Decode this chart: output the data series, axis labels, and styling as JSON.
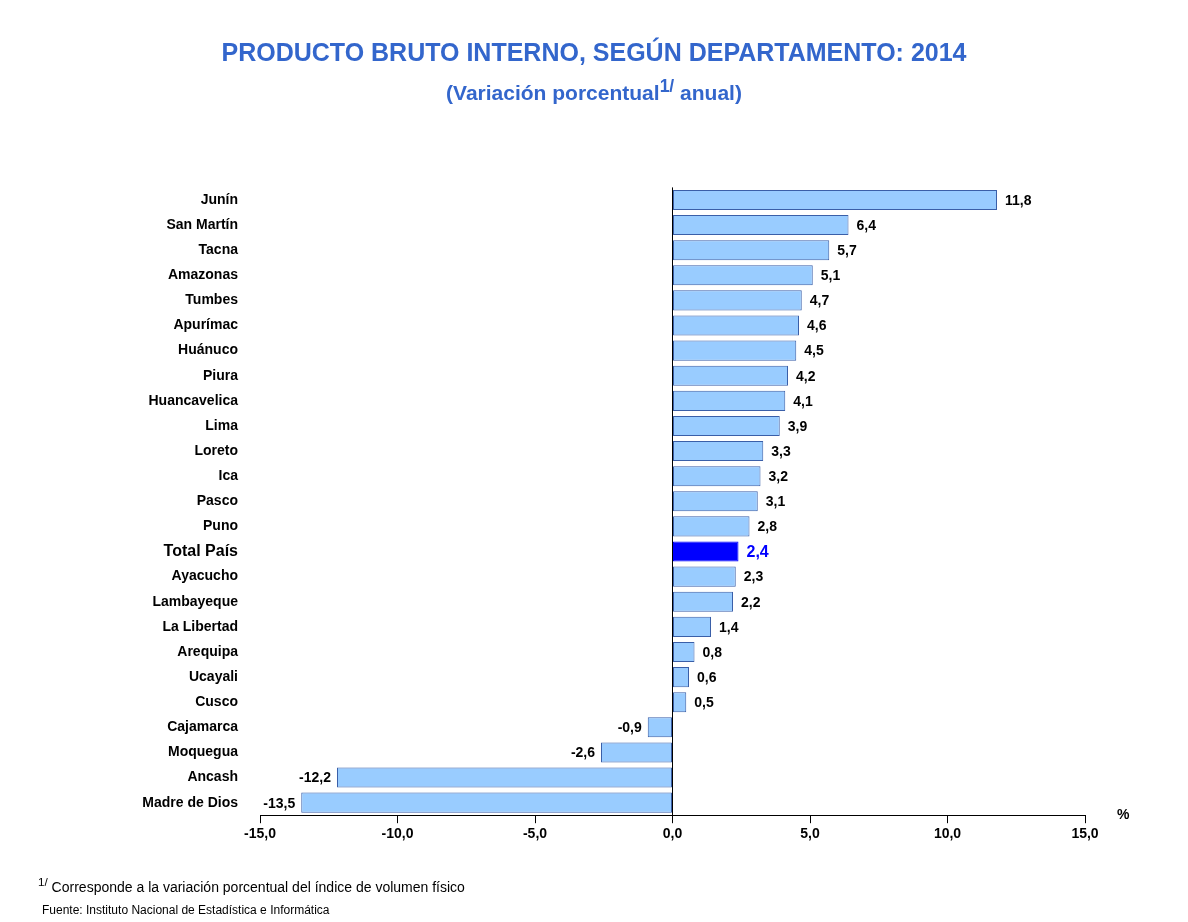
{
  "chart_data": {
    "type": "bar",
    "orientation": "horizontal",
    "title": "PRODUCTO BRUTO INTERNO, SEGÚN DEPARTAMENTO: 2014",
    "subtitle": "(Variación porcentual$^{1/}$ anual)",
    "xlabel": "%",
    "categories": [
      "Junín",
      "San Martín",
      "Tacna",
      "Amazonas",
      "Tumbes",
      "Apurímac",
      "Huánuco",
      "Piura",
      "Huancavelica",
      "Lima",
      "Loreto",
      "Ica",
      "Pasco",
      "Puno",
      "Total País",
      "Ayacucho",
      "Lambayeque",
      "La Libertad",
      "Arequipa",
      "Ucayali",
      "Cusco",
      "Cajamarca",
      "Moquegua",
      "Ancash",
      "Madre de Dios"
    ],
    "values": [
      11.8,
      6.4,
      5.7,
      5.1,
      4.7,
      4.6,
      4.5,
      4.2,
      4.1,
      3.9,
      3.3,
      3.2,
      3.1,
      2.8,
      2.4,
      2.3,
      2.2,
      1.4,
      0.8,
      0.6,
      0.5,
      -0.9,
      -2.6,
      -12.2,
      -13.5
    ],
    "value_labels": [
      "11,8",
      "6,4",
      "5,7",
      "5,1",
      "4,7",
      "4,6",
      "4,5",
      "4,2",
      "4,1",
      "3,9",
      "3,3",
      "3,2",
      "3,1",
      "2,8",
      "2,4",
      "2,3",
      "2,2",
      "1,4",
      "0,8",
      "0,6",
      "0,5",
      "-0,9",
      "-2,6",
      "-12,2",
      "-13,5"
    ],
    "color": "#99ccff",
    "colors": [
      "#99ccff",
      "#99ccff",
      "#99ccff",
      "#99ccff",
      "#99ccff",
      "#99ccff",
      "#99ccff",
      "#99ccff",
      "#99ccff",
      "#99ccff",
      "#99ccff",
      "#99ccff",
      "#99ccff",
      "#99ccff",
      "#0000ff",
      "#99ccff",
      "#99ccff",
      "#99ccff",
      "#99ccff",
      "#99ccff",
      "#99ccff",
      "#99ccff",
      "#99ccff",
      "#99ccff",
      "#99ccff"
    ],
    "xlim": [
      -15,
      15
    ],
    "xticks": [
      {
        "value": -15,
        "label": "-15,0"
      },
      {
        "value": -10,
        "label": "-10,0"
      },
      {
        "value": -5,
        "label": "-5,0"
      },
      {
        "value": 0,
        "label": "0,0"
      },
      {
        "value": 5,
        "label": "5,0"
      },
      {
        "value": 10,
        "label": "10,0"
      },
      {
        "value": 15,
        "label": "15,0"
      }
    ],
    "annotations": [
      "$^{1/}$ Corresponde a la variación porcentual del índice de volumen físico",
      "Fuente: Instituto Nacional de Estadística e Informática"
    ]
  }
}
